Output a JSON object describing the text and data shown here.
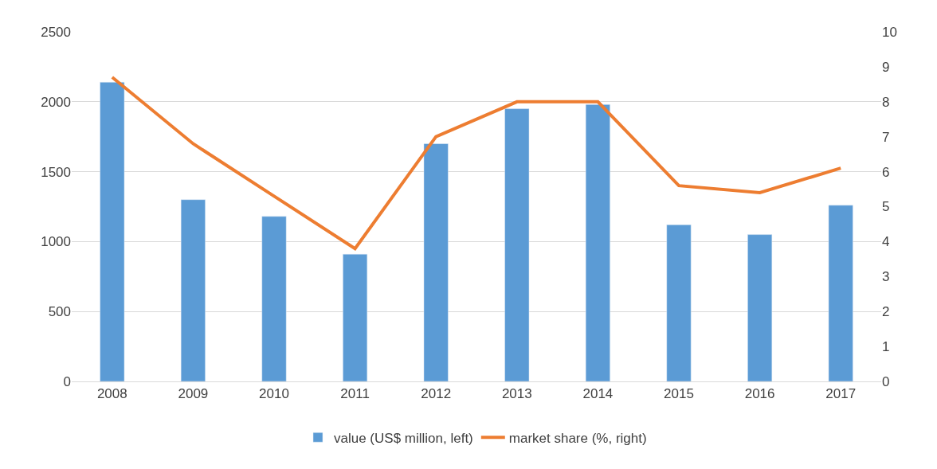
{
  "chart_data": {
    "type": "bar",
    "categories": [
      "2008",
      "2009",
      "2010",
      "2011",
      "2012",
      "2013",
      "2014",
      "2015",
      "2016",
      "2017"
    ],
    "series": [
      {
        "name": "value (US$ million, left)",
        "color": "#5b9bd5",
        "values": [
          2140,
          1300,
          1180,
          910,
          1700,
          1950,
          1980,
          1120,
          1050,
          1260
        ]
      },
      {
        "name": "market share (%, right)",
        "type": "line",
        "axis": "y2",
        "color": "#ed7d31",
        "values": [
          8.7,
          6.8,
          5.3,
          3.8,
          7.0,
          8.0,
          8.0,
          5.6,
          5.4,
          6.1
        ]
      }
    ],
    "ylim": [
      0,
      2500
    ],
    "yticks": [
      0,
      500,
      1000,
      1500,
      2000,
      2500
    ],
    "y2lim": [
      0,
      10
    ],
    "y2ticks": [
      0,
      1,
      2,
      3,
      4,
      5,
      6,
      7,
      8,
      9,
      10
    ],
    "grid": "y",
    "legend": "bottom",
    "marker": "none",
    "line_style": "solid"
  }
}
